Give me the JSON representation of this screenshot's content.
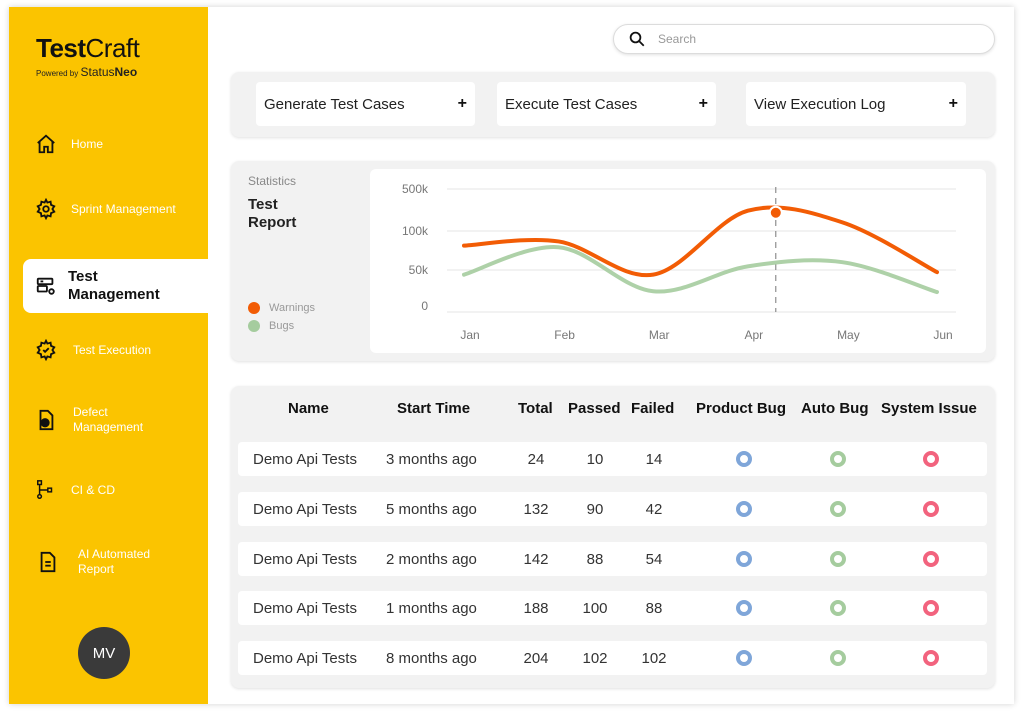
{
  "brand": {
    "name_bold": "Test",
    "name_light": "Craft",
    "powered_by": "Powered by",
    "company_light": "Status",
    "company_bold": "Neo"
  },
  "sidebar": {
    "items": [
      {
        "label": "Home",
        "icon": "home-icon"
      },
      {
        "label": "Sprint Management",
        "icon": "gear-icon"
      },
      {
        "label": "Test Management",
        "icon": "server-gear-icon",
        "active": true
      },
      {
        "label": "Test Execution",
        "icon": "gear-check-icon"
      },
      {
        "label": "Defect Management",
        "icon": "file-bug-icon"
      },
      {
        "label": "CI & CD",
        "icon": "pipeline-icon"
      },
      {
        "label": "AI Automated Report",
        "icon": "report-icon"
      }
    ],
    "avatar": "MV"
  },
  "search": {
    "placeholder": "Search"
  },
  "actions": {
    "generate": "Generate Test Cases",
    "execute": "Execute Test Cases",
    "view_log": "View Execution Log",
    "plus": "+"
  },
  "stats": {
    "label": "Statistics",
    "title": "Test Report",
    "legend": [
      {
        "name": "Warnings",
        "color": "#F25C05"
      },
      {
        "name": "Bugs",
        "color": "#A5CC9E"
      }
    ]
  },
  "chart_data": {
    "type": "line",
    "categories": [
      "Jan",
      "Feb",
      "Mar",
      "Apr",
      "May",
      "Jun"
    ],
    "y_ticks": [
      "0",
      "50k",
      "100k",
      "500k"
    ],
    "series": [
      {
        "name": "Warnings",
        "color": "#F25C05",
        "values": [
          0.8,
          0.85,
          0.45,
          1.22,
          1.08,
          0.48
        ]
      },
      {
        "name": "Bugs",
        "color": "#A5CC9E",
        "values": [
          0.45,
          0.78,
          0.25,
          0.55,
          0.6,
          0.24
        ]
      }
    ],
    "highlight": {
      "category": "Apr",
      "series": "Warnings"
    },
    "grid": true,
    "legend_position": "bottom-left"
  },
  "table": {
    "headers": [
      "Name",
      "Start Time",
      "Total",
      "Passed",
      "Failed",
      "Product Bug",
      "Auto Bug",
      "System Issue"
    ],
    "rows": [
      {
        "name": "Demo Api Tests",
        "start": "3 months ago",
        "total": "24",
        "passed": "10",
        "failed": "14"
      },
      {
        "name": "Demo Api Tests",
        "start": "5 months ago",
        "total": "132",
        "passed": "90",
        "failed": "42"
      },
      {
        "name": "Demo Api Tests",
        "start": "2 months ago",
        "total": "142",
        "passed": "88",
        "failed": "54"
      },
      {
        "name": "Demo Api Tests",
        "start": "1 months ago",
        "total": "188",
        "passed": "100",
        "failed": "88"
      },
      {
        "name": "Demo Api Tests",
        "start": "8 months ago",
        "total": "204",
        "passed": "102",
        "failed": "102"
      }
    ],
    "status_colors": {
      "product_bug": "#7FA6D9",
      "auto_bug": "#A5CC9E",
      "system_issue": "#F2637E"
    }
  }
}
